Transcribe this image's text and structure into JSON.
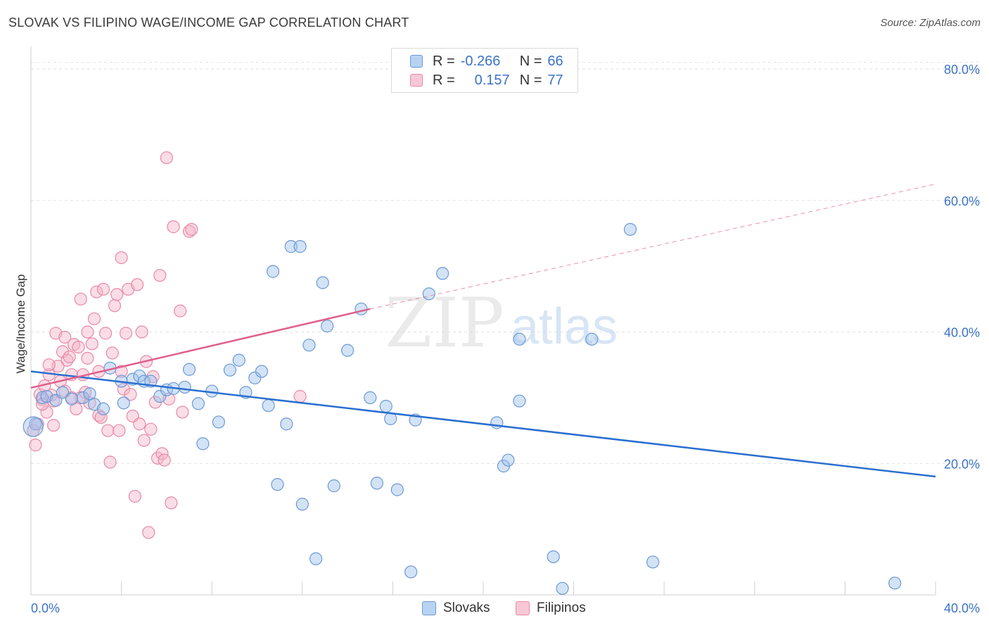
{
  "title": "SLOVAK VS FILIPINO WAGE/INCOME GAP CORRELATION CHART",
  "source": "Source: ZipAtlas.com",
  "watermark": {
    "zip": "ZIP",
    "atlas": "atlas"
  },
  "colors": {
    "slovaks": "#9dc1ec",
    "slovaks_stroke": "#6b9ad6",
    "slovaks_line": "#2a6fd0",
    "filipinos": "#f5b3c8",
    "filipinos_stroke": "#e889a8",
    "filipinos_line": "#e0608e",
    "tick_label": "#3b73c8",
    "grid": "#e2e2e2"
  },
  "legend": {
    "slovaks": {
      "r_label": "R =",
      "r_value": "-0.266",
      "n_label": "N =",
      "n_value": "66"
    },
    "filipinos": {
      "r_label": "R =",
      "r_value": "0.157",
      "n_label": "N =",
      "n_value": "77"
    }
  },
  "bottom_legend": {
    "slovaks": "Slovaks",
    "filipinos": "Filipinos"
  },
  "chart_data": {
    "type": "scatter",
    "title": "SLOVAK VS FILIPINO WAGE/INCOME GAP CORRELATION CHART",
    "xlabel": "",
    "ylabel": "Wage/Income Gap",
    "xlim": [
      0,
      40
    ],
    "ylim": [
      0,
      83
    ],
    "x_tick_labels": [
      "0.0%",
      "40.0%"
    ],
    "y_ticks": [
      20,
      40,
      60,
      80
    ],
    "y_tick_labels": [
      "20.0%",
      "40.0%",
      "60.0%",
      "80.0%"
    ],
    "grid": true,
    "legend_position": "top-center",
    "series": [
      {
        "name": "Slovaks",
        "trend": {
          "x": [
            0,
            40
          ],
          "y": [
            34.0,
            18.0
          ]
        },
        "points": [
          [
            0.2,
            26.0
          ],
          [
            0.5,
            30.0
          ],
          [
            0.7,
            30.2
          ],
          [
            1.1,
            29.6
          ],
          [
            1.4,
            30.8
          ],
          [
            1.8,
            29.8
          ],
          [
            2.3,
            30.0
          ],
          [
            2.6,
            30.6
          ],
          [
            2.8,
            29.0
          ],
          [
            3.2,
            28.3
          ],
          [
            3.5,
            34.5
          ],
          [
            4.0,
            32.5
          ],
          [
            4.1,
            29.2
          ],
          [
            4.5,
            32.8
          ],
          [
            4.8,
            33.3
          ],
          [
            5.0,
            32.5
          ],
          [
            5.3,
            32.5
          ],
          [
            5.7,
            30.2
          ],
          [
            6.0,
            31.2
          ],
          [
            6.3,
            31.4
          ],
          [
            6.8,
            31.6
          ],
          [
            7.0,
            34.3
          ],
          [
            7.4,
            29.1
          ],
          [
            7.6,
            23.0
          ],
          [
            8.0,
            31.0
          ],
          [
            8.3,
            26.3
          ],
          [
            8.8,
            34.2
          ],
          [
            9.2,
            35.7
          ],
          [
            9.5,
            30.8
          ],
          [
            9.9,
            33.0
          ],
          [
            10.2,
            34.0
          ],
          [
            10.5,
            28.8
          ],
          [
            10.7,
            49.2
          ],
          [
            10.9,
            16.8
          ],
          [
            11.3,
            26.0
          ],
          [
            11.5,
            53.0
          ],
          [
            11.9,
            53.0
          ],
          [
            12.0,
            13.8
          ],
          [
            12.3,
            38.0
          ],
          [
            12.6,
            5.5
          ],
          [
            12.9,
            47.5
          ],
          [
            13.1,
            40.9
          ],
          [
            13.4,
            16.6
          ],
          [
            14.0,
            37.2
          ],
          [
            14.6,
            43.5
          ],
          [
            15.0,
            30.0
          ],
          [
            15.3,
            17.0
          ],
          [
            15.7,
            28.7
          ],
          [
            15.9,
            26.8
          ],
          [
            16.2,
            16.0
          ],
          [
            16.8,
            3.5
          ],
          [
            17.0,
            26.6
          ],
          [
            17.6,
            45.8
          ],
          [
            18.2,
            48.9
          ],
          [
            20.6,
            26.2
          ],
          [
            20.9,
            19.6
          ],
          [
            21.1,
            20.5
          ],
          [
            21.6,
            38.9
          ],
          [
            21.6,
            29.5
          ],
          [
            23.1,
            5.8
          ],
          [
            23.5,
            1.0
          ],
          [
            24.8,
            38.9
          ],
          [
            26.5,
            55.6
          ],
          [
            27.5,
            5.0
          ],
          [
            38.2,
            1.8
          ],
          [
            0.1,
            25.6
          ]
        ]
      },
      {
        "name": "Filipinos",
        "trend": {
          "x": [
            0,
            15
          ],
          "y": [
            31.5,
            43.5
          ],
          "extended": {
            "x": [
              15,
              40
            ],
            "y": [
              43.5,
              62.5
            ]
          }
        },
        "points": [
          [
            0.1,
            25.0
          ],
          [
            0.2,
            22.8
          ],
          [
            0.3,
            26.0
          ],
          [
            0.4,
            30.5
          ],
          [
            0.5,
            29.7
          ],
          [
            0.6,
            31.8
          ],
          [
            0.7,
            27.8
          ],
          [
            0.8,
            33.5
          ],
          [
            0.9,
            30.4
          ],
          [
            1.0,
            29.5
          ],
          [
            1.1,
            39.8
          ],
          [
            1.2,
            34.8
          ],
          [
            1.3,
            32.5
          ],
          [
            1.4,
            37.0
          ],
          [
            1.5,
            39.2
          ],
          [
            1.6,
            35.7
          ],
          [
            1.7,
            36.2
          ],
          [
            1.8,
            33.5
          ],
          [
            1.9,
            38.1
          ],
          [
            2.0,
            28.3
          ],
          [
            2.1,
            37.7
          ],
          [
            2.2,
            45.0
          ],
          [
            2.3,
            33.5
          ],
          [
            2.4,
            30.8
          ],
          [
            2.5,
            40.0
          ],
          [
            2.6,
            29.2
          ],
          [
            2.7,
            38.2
          ],
          [
            2.8,
            42.0
          ],
          [
            2.9,
            46.1
          ],
          [
            3.0,
            27.3
          ],
          [
            3.1,
            27.0
          ],
          [
            3.2,
            46.5
          ],
          [
            3.3,
            39.8
          ],
          [
            3.4,
            25.0
          ],
          [
            3.5,
            20.2
          ],
          [
            3.6,
            36.8
          ],
          [
            3.7,
            44.0
          ],
          [
            3.8,
            45.7
          ],
          [
            3.9,
            25.0
          ],
          [
            4.0,
            51.3
          ],
          [
            4.1,
            31.3
          ],
          [
            4.2,
            39.8
          ],
          [
            4.3,
            46.5
          ],
          [
            4.4,
            30.5
          ],
          [
            4.5,
            27.2
          ],
          [
            4.6,
            15.0
          ],
          [
            4.7,
            47.2
          ],
          [
            4.8,
            26.0
          ],
          [
            4.9,
            40.0
          ],
          [
            5.0,
            23.5
          ],
          [
            5.1,
            35.5
          ],
          [
            5.2,
            9.5
          ],
          [
            5.3,
            25.2
          ],
          [
            5.4,
            33.2
          ],
          [
            5.5,
            29.3
          ],
          [
            5.6,
            20.8
          ],
          [
            5.7,
            48.6
          ],
          [
            5.8,
            21.5
          ],
          [
            5.9,
            20.5
          ],
          [
            6.0,
            66.5
          ],
          [
            6.1,
            29.8
          ],
          [
            6.2,
            14.0
          ],
          [
            6.3,
            56.0
          ],
          [
            6.6,
            43.2
          ],
          [
            6.7,
            27.8
          ],
          [
            7.0,
            55.3
          ],
          [
            7.1,
            55.6
          ],
          [
            11.9,
            30.2
          ],
          [
            2.2,
            30.0
          ],
          [
            1.0,
            25.8
          ],
          [
            0.5,
            29.0
          ],
          [
            1.8,
            30.0
          ],
          [
            3.0,
            34.0
          ],
          [
            2.5,
            36.0
          ],
          [
            4.0,
            34.0
          ],
          [
            0.8,
            35.0
          ],
          [
            1.5,
            31.0
          ]
        ]
      }
    ]
  }
}
